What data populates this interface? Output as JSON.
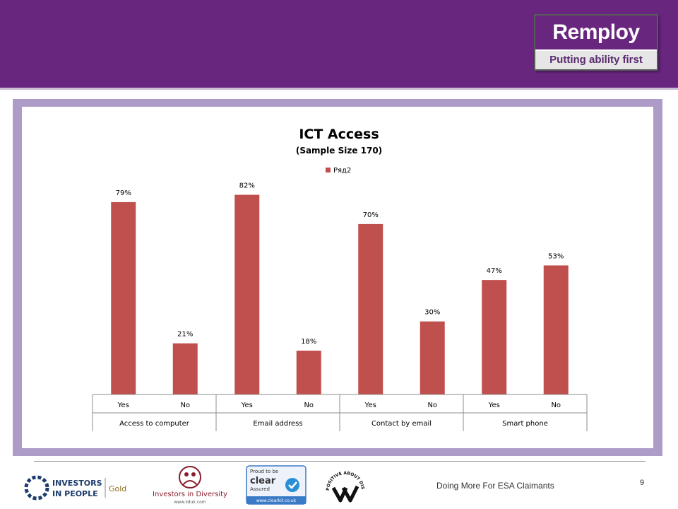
{
  "header": {
    "brand_name": "Remploy",
    "tagline": "Putting ability first",
    "brand_color": "#68267f"
  },
  "chart_data": {
    "type": "bar",
    "title": "ICT Access",
    "subtitle": "(Sample Size 170)",
    "legend": {
      "position": "top",
      "entries": [
        "Ряд2"
      ]
    },
    "series": [
      {
        "name": "Ряд2",
        "color": "#c0504d",
        "values": [
          79,
          21,
          82,
          18,
          70,
          30,
          47,
          53
        ]
      }
    ],
    "categories": [
      "Yes",
      "No",
      "Yes",
      "No",
      "Yes",
      "No",
      "Yes",
      "No"
    ],
    "groups": [
      "Access to computer",
      "Email address",
      "Contact by email",
      "Smart phone"
    ],
    "data_labels": [
      "79%",
      "21%",
      "82%",
      "18%",
      "70%",
      "30%",
      "47%",
      "53%"
    ],
    "ylim": [
      0,
      90
    ],
    "grid": false,
    "xlabel": "",
    "ylabel": ""
  },
  "footer": {
    "logos": {
      "iip_line1": "INVESTORS",
      "iip_line2": "IN PEOPLE",
      "iip_level": "Gold",
      "iid_name": "Investors in Diversity",
      "iid_url": "www.iiduk.com",
      "clear_line1": "Proud to be",
      "clear_brand": "clear",
      "clear_line2": "Assured",
      "clear_url": "www.clearkit.co.uk",
      "pad_text": "POSITIVE ABOUT DISABLED PEOPLE"
    },
    "text": "Doing More For ESA Claimants",
    "page_number": "9"
  }
}
